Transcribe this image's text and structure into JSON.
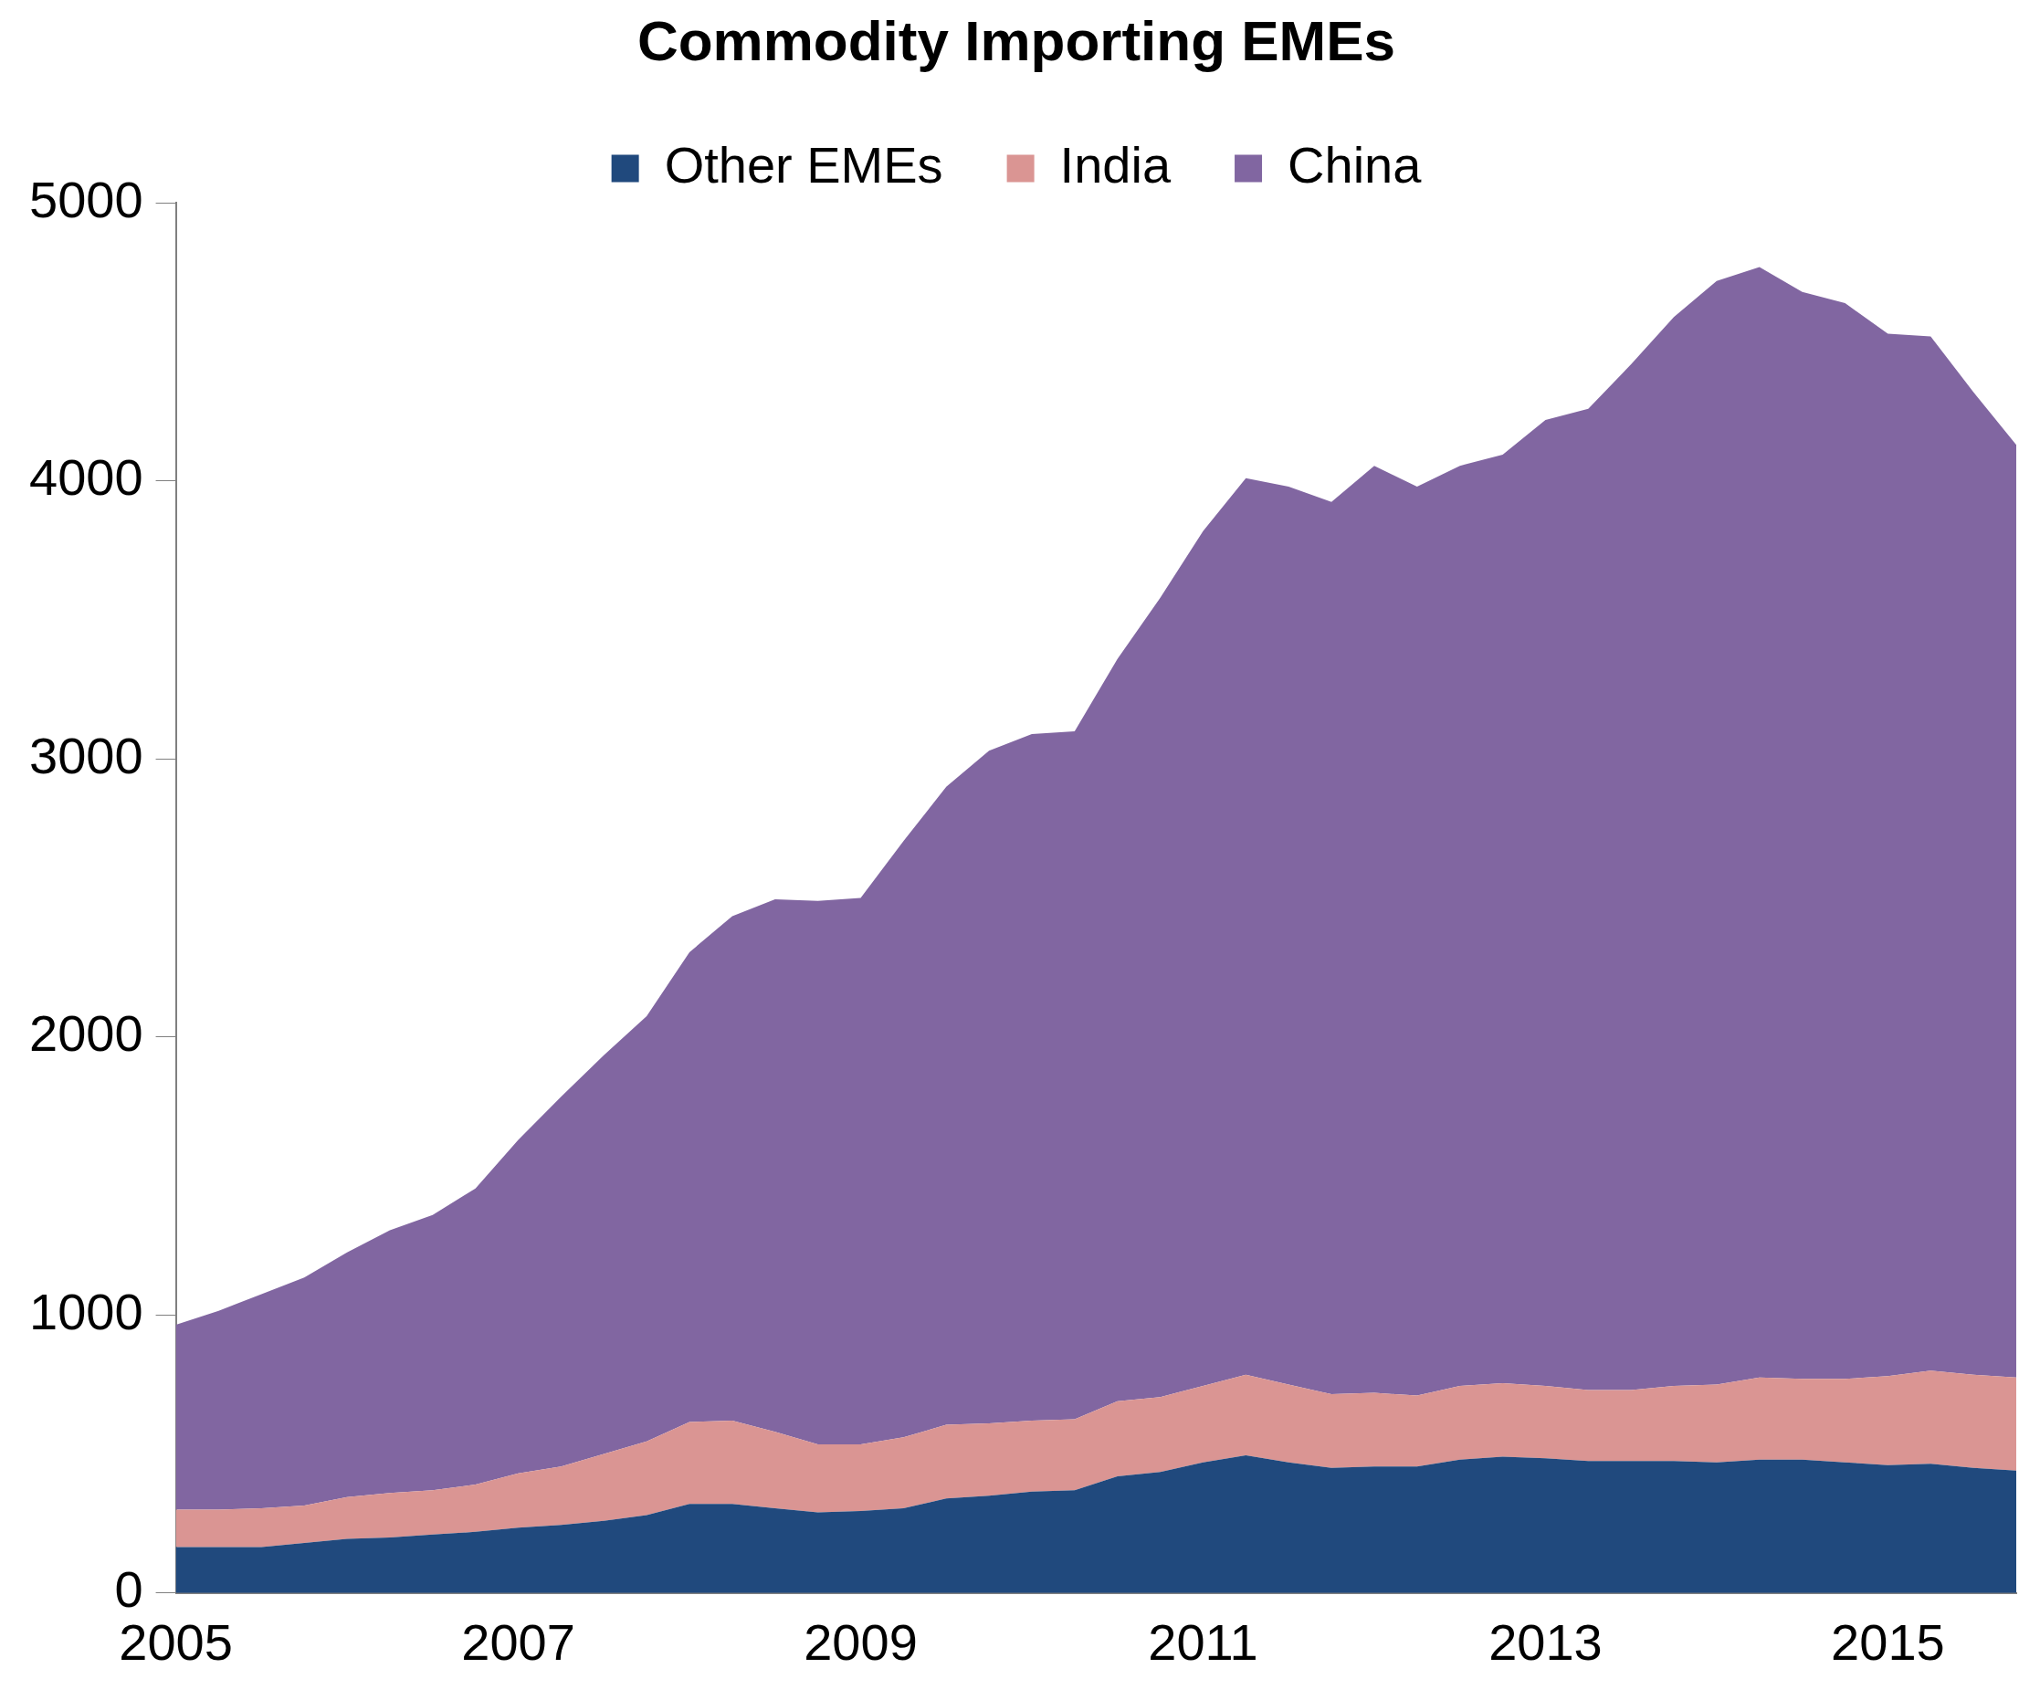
{
  "chart_data": {
    "type": "area",
    "title": "Commodity Importing EMEs",
    "stacked": true,
    "legend": "top",
    "grid": false,
    "x": [
      2005,
      2005.25,
      2005.5,
      2005.75,
      2006,
      2006.25,
      2006.5,
      2006.75,
      2007,
      2007.25,
      2007.5,
      2007.75,
      2008,
      2008.25,
      2008.5,
      2008.75,
      2009,
      2009.25,
      2009.5,
      2009.75,
      2010,
      2010.25,
      2010.5,
      2010.75,
      2011,
      2011.25,
      2011.5,
      2011.75,
      2012,
      2012.25,
      2012.5,
      2012.75,
      2013,
      2013.25,
      2013.5,
      2013.75,
      2014,
      2014.25,
      2014.5,
      2014.75,
      2015,
      2015.25,
      2015.5,
      2015.75
    ],
    "xlim": [
      2005,
      2015.75
    ],
    "xticks": [
      2005,
      2007,
      2009,
      2011,
      2013,
      2015
    ],
    "ylim": [
      0,
      5000
    ],
    "yticks": [
      0,
      1000,
      2000,
      3000,
      4000,
      5000
    ],
    "series": [
      {
        "name": "Other EMEs",
        "color": "#20497d",
        "values": [
          165,
          165,
          165,
          180,
          195,
          200,
          210,
          220,
          235,
          245,
          260,
          280,
          320,
          320,
          305,
          290,
          295,
          305,
          340,
          350,
          365,
          370,
          420,
          435,
          470,
          495,
          470,
          450,
          455,
          455,
          480,
          490,
          485,
          475,
          475,
          475,
          470,
          480,
          480,
          470,
          460,
          465,
          450,
          440
        ]
      },
      {
        "name": "India",
        "color": "#da9593",
        "values": [
          135,
          135,
          140,
          135,
          150,
          160,
          160,
          170,
          195,
          210,
          240,
          265,
          295,
          300,
          275,
          245,
          240,
          255,
          265,
          260,
          255,
          255,
          270,
          270,
          275,
          290,
          280,
          265,
          265,
          255,
          265,
          265,
          260,
          255,
          255,
          270,
          280,
          295,
          290,
          300,
          320,
          335,
          335,
          335
        ]
      },
      {
        "name": "China",
        "color": "#8166a1",
        "values": [
          665,
          715,
          770,
          820,
          880,
          945,
          990,
          1065,
          1200,
          1330,
          1435,
          1530,
          1690,
          1815,
          1915,
          1955,
          1965,
          2145,
          2295,
          2420,
          2470,
          2475,
          2670,
          2875,
          3075,
          3225,
          3230,
          3210,
          3335,
          3270,
          3310,
          3340,
          3475,
          3530,
          3690,
          3845,
          3970,
          3995,
          3910,
          3870,
          3750,
          3720,
          3535,
          3355
        ]
      }
    ]
  }
}
